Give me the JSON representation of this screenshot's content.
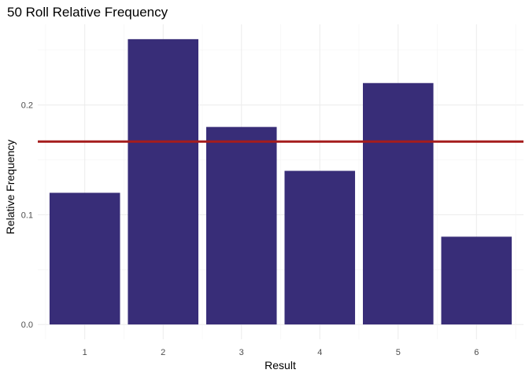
{
  "chart_data": {
    "type": "bar",
    "title": "50 Roll Relative Frequency",
    "xlabel": "Result",
    "ylabel": "Relative Frequency",
    "categories": [
      "1",
      "2",
      "3",
      "4",
      "5",
      "6"
    ],
    "values": [
      0.12,
      0.26,
      0.18,
      0.14,
      0.22,
      0.08
    ],
    "ylim": [
      0,
      0.27
    ],
    "yticks": [
      0.0,
      0.1,
      0.2
    ],
    "ytick_labels": [
      "0.0",
      "0.1",
      "0.2"
    ],
    "reference_line": {
      "y": 0.1667,
      "color": "#a51d1d"
    },
    "bar_color": "#382d78",
    "grid": true,
    "legend": "none"
  }
}
